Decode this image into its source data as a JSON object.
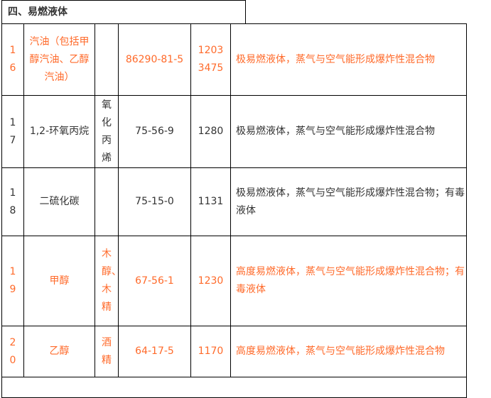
{
  "section_title": "四、易燃液体",
  "accent_color": "#ff6a2a",
  "rows": [
    {
      "no": "16",
      "name": "汽油（包括甲醇汽油、乙醇汽油）",
      "alias": "",
      "cas": "86290-81-5",
      "un": "1203 3475",
      "desc": "极易燃液体，蒸气与空气能形成爆炸性混合物",
      "highlight": true
    },
    {
      "no": "17",
      "name": "1,2-环氧丙烷",
      "alias": "氧化丙烯",
      "cas": "75-56-9",
      "un": "1280",
      "desc": "极易燃液体，蒸气与空气能形成爆炸性混合物",
      "highlight": false
    },
    {
      "no": "18",
      "name": "二硫化碳",
      "alias": "",
      "cas": "75-15-0",
      "un": "1131",
      "desc": "极易燃液体，蒸气与空气能形成爆炸性混合物；有毒液体",
      "highlight": false
    },
    {
      "no": "19",
      "name": "甲醇",
      "alias": "木醇、木精",
      "cas": "67-56-1",
      "un": "1230",
      "desc": "高度易燃液体，蒸气与空气能形成爆炸性混合物；有毒液体",
      "highlight": true
    },
    {
      "no": "20",
      "name": "乙醇",
      "alias": "酒精",
      "cas": "64-17-5",
      "un": "1170",
      "desc": "高度易燃液体，蒸气与空气能形成爆炸性混合物",
      "highlight": true
    }
  ]
}
